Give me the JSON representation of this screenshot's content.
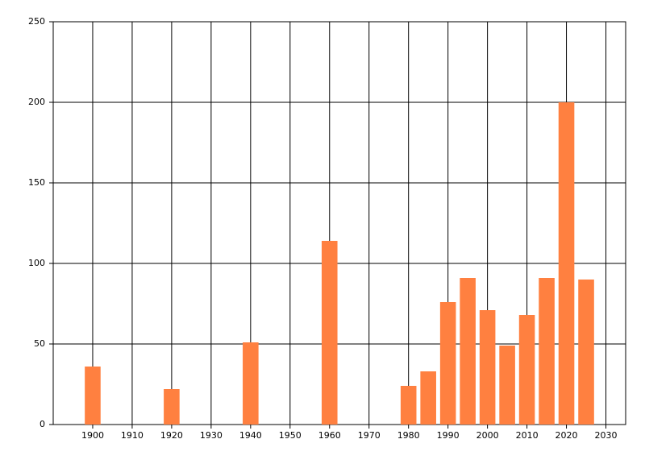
{
  "chart_data": {
    "type": "bar",
    "x": [
      1900,
      1920,
      1940,
      1960,
      1980,
      1985,
      1990,
      1995,
      2000,
      2005,
      2010,
      2015,
      2020,
      2025
    ],
    "values": [
      36,
      22,
      51,
      114,
      24,
      33,
      76,
      91,
      71,
      49,
      68,
      91,
      200,
      90
    ],
    "color": "#ff8040",
    "xlim": [
      1890,
      2035
    ],
    "xticks": [
      1900,
      1910,
      1920,
      1930,
      1940,
      1950,
      1960,
      1970,
      1980,
      1990,
      2000,
      2010,
      2020,
      2030
    ],
    "ylim": [
      0,
      250
    ],
    "yticks": [
      0,
      50,
      100,
      150,
      200,
      250
    ],
    "grid": true
  }
}
